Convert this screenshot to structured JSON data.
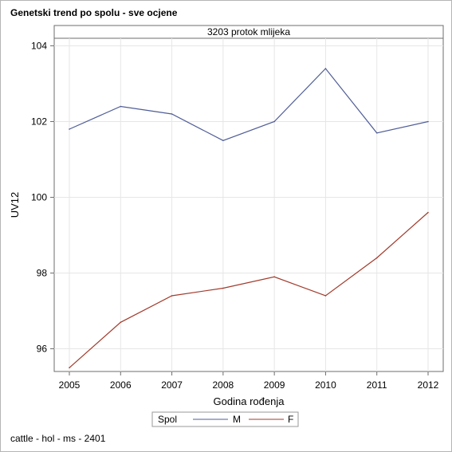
{
  "title": "Genetski trend po spolu - sve ocjene",
  "footnote": "cattle - hol - ms - 2401",
  "colors": {
    "M": "#4f5d96",
    "F": "#a23b2c",
    "grid": "#e6e6e6",
    "axis": "#6e6e6e"
  },
  "chart_data": {
    "type": "line",
    "panel_label": "3203 protok mlijeka",
    "xlabel": "Godina rođenja",
    "ylabel": "UV12",
    "x": [
      2005,
      2006,
      2007,
      2008,
      2009,
      2010,
      2011,
      2012
    ],
    "x_ticks": [
      "2005",
      "2006",
      "2007",
      "2008",
      "2009",
      "2010",
      "2011",
      "2012"
    ],
    "y_ticks": [
      "96",
      "98",
      "100",
      "102",
      "104"
    ],
    "ylim": [
      95.4,
      104.2
    ],
    "grid": true,
    "legend": {
      "title": "Spol",
      "placement": "bottom"
    },
    "series": [
      {
        "name": "M",
        "values": [
          101.8,
          102.4,
          102.2,
          101.5,
          102.0,
          103.4,
          101.7,
          102.0
        ]
      },
      {
        "name": "F",
        "values": [
          95.5,
          96.7,
          97.4,
          97.6,
          97.9,
          97.4,
          98.4,
          99.6
        ]
      }
    ]
  }
}
